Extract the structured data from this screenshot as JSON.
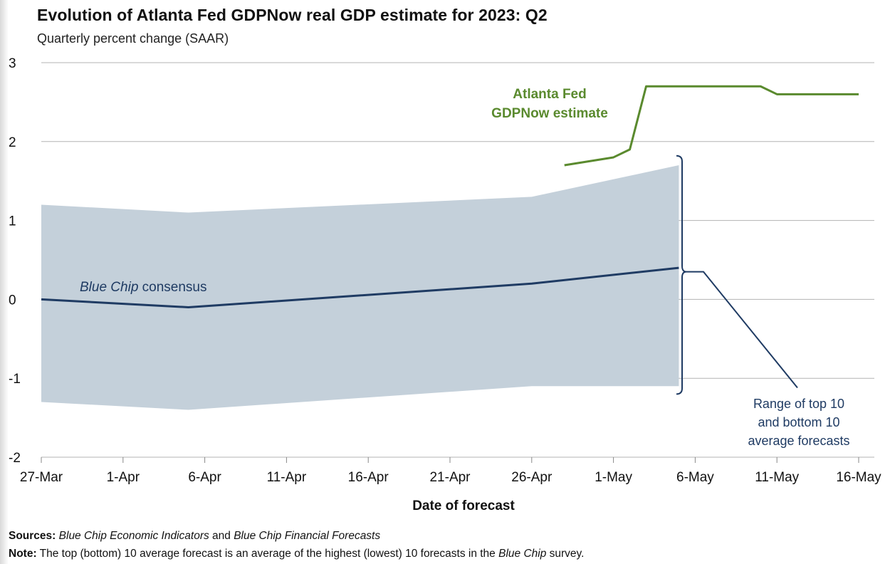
{
  "chart_data": {
    "type": "line",
    "title": "Evolution of Atlanta Fed GDPNow real GDP estimate for 2023: Q2",
    "subtitle": "Quarterly percent change (SAAR)",
    "xlabel": "Date of forecast",
    "ylabel": "",
    "ylim": [
      -2,
      3
    ],
    "yticks": [
      "3",
      "2",
      "1",
      "0",
      "-1",
      "-2"
    ],
    "x_ticks": [
      "27-Mar",
      "1-Apr",
      "6-Apr",
      "11-Apr",
      "16-Apr",
      "21-Apr",
      "26-Apr",
      "1-May",
      "6-May",
      "11-May",
      "16-May"
    ],
    "grid": "horizontal",
    "series": [
      {
        "name": "Atlanta Fed GDPNow estimate",
        "color": "#5a8a2e",
        "x": [
          "2023-04-28",
          "2023-05-01",
          "2023-05-02",
          "2023-05-03",
          "2023-05-04",
          "2023-05-10",
          "2023-05-11",
          "2023-05-16"
        ],
        "values": [
          1.7,
          1.8,
          1.9,
          2.7,
          2.7,
          2.7,
          2.6,
          2.6
        ]
      },
      {
        "name": "Blue Chip consensus",
        "color": "#1f3b63",
        "x": [
          "2023-03-27",
          "2023-04-05",
          "2023-04-26",
          "2023-05-05"
        ],
        "values": [
          0.0,
          -0.1,
          0.2,
          0.4
        ]
      }
    ],
    "band": {
      "name": "Range of top 10 and bottom 10 average forecasts",
      "color": "#c4d0da",
      "x": [
        "2023-03-27",
        "2023-04-05",
        "2023-04-26",
        "2023-05-05"
      ],
      "upper": [
        1.2,
        1.1,
        1.3,
        1.7
      ],
      "lower": [
        -1.3,
        -1.4,
        -1.1,
        -1.1
      ]
    },
    "annotations": {
      "gdpnow_label": [
        "Atlanta Fed",
        "GDPNow estimate"
      ],
      "consensus_label_italic": "Blue Chip",
      "consensus_label_rest": " consensus",
      "range_label": [
        "Range of top 10",
        "and bottom 10",
        "average forecasts"
      ]
    }
  },
  "footer": {
    "sources_label": "Sources:",
    "sources_text_1": "Blue Chip Economic Indicators",
    "sources_and": " and ",
    "sources_text_2": "Blue Chip Financial Forecasts",
    "note_label": "Note:",
    "note_text": " The top (bottom) 10 average forecast is an average of the highest (lowest) 10 forecasts in the ",
    "note_italic": "Blue Chip",
    "note_end": " survey."
  }
}
